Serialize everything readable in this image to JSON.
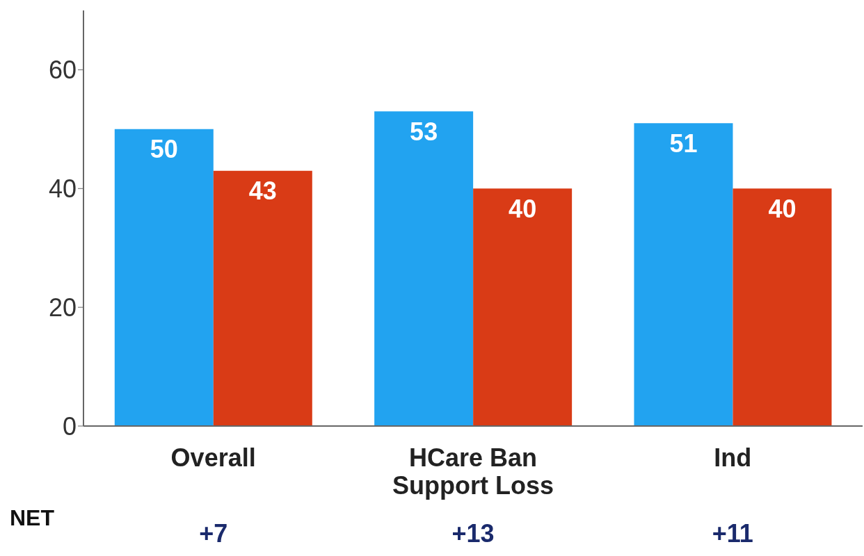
{
  "chart_data": {
    "type": "bar",
    "categories": [
      "Overall",
      "HCare Ban Support Loss",
      "Ind"
    ],
    "series": [
      {
        "color": "#22a3f0",
        "values": [
          50,
          53,
          51
        ]
      },
      {
        "color": "#d93b16",
        "values": [
          43,
          40,
          40
        ]
      }
    ],
    "ylim": [
      0,
      70
    ],
    "yticks": [
      0,
      20,
      40,
      60
    ],
    "data_labels": true,
    "annotations": [
      "NET",
      "+7",
      "+13",
      "+11"
    ]
  }
}
